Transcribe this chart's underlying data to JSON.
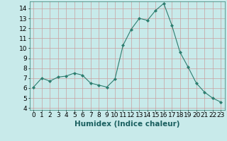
{
  "x": [
    0,
    1,
    2,
    3,
    4,
    5,
    6,
    7,
    8,
    9,
    10,
    11,
    12,
    13,
    14,
    15,
    16,
    17,
    18,
    19,
    20,
    21,
    22,
    23
  ],
  "y": [
    6.1,
    7.0,
    6.7,
    7.1,
    7.2,
    7.5,
    7.3,
    6.5,
    6.3,
    6.1,
    6.9,
    10.3,
    11.9,
    13.0,
    12.8,
    13.8,
    14.5,
    12.3,
    9.6,
    8.1,
    6.5,
    5.6,
    5.0,
    4.6
  ],
  "xlabel": "Humidex (Indice chaleur)",
  "xlim": [
    -0.5,
    23.5
  ],
  "ylim": [
    3.8,
    14.7
  ],
  "yticks": [
    4,
    5,
    6,
    7,
    8,
    9,
    10,
    11,
    12,
    13,
    14
  ],
  "xticks": [
    0,
    1,
    2,
    3,
    4,
    5,
    6,
    7,
    8,
    9,
    10,
    11,
    12,
    13,
    14,
    15,
    16,
    17,
    18,
    19,
    20,
    21,
    22,
    23
  ],
  "line_color": "#2d7d6f",
  "marker_color": "#2d7d6f",
  "bg_color": "#c8eaea",
  "grid_color": "#c8a0a0",
  "fig_bg": "#c8eaea",
  "xlabel_fontsize": 7.5,
  "tick_fontsize": 6.5
}
